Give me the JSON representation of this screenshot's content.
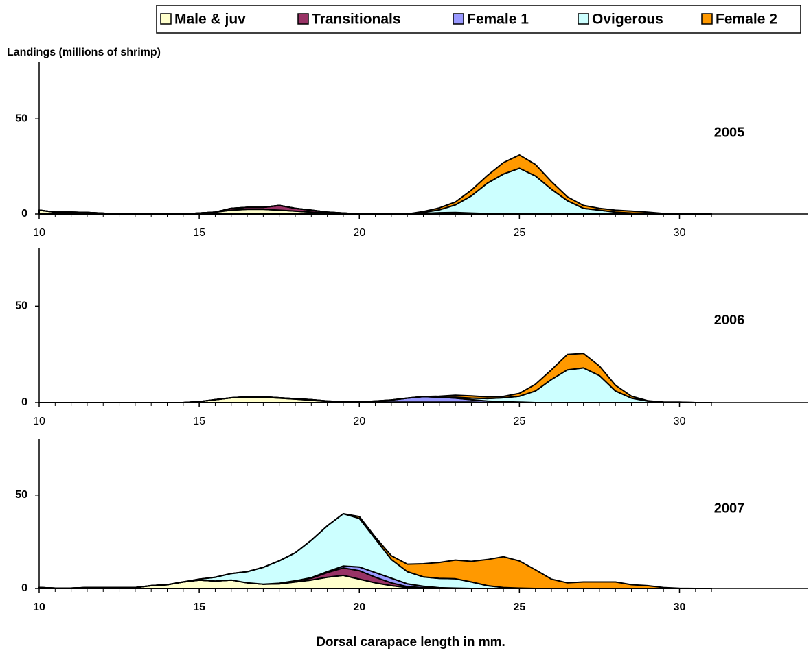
{
  "chart_data": [
    {
      "type": "stacked_area",
      "title": "2005",
      "y_label": "Landings (millions of shrimp)",
      "x": [
        10,
        10.5,
        11,
        11.5,
        12,
        12.5,
        13,
        13.5,
        14,
        14.5,
        15,
        15.5,
        16,
        16.5,
        17,
        17.5,
        18,
        18.5,
        19,
        19.5,
        20,
        20.5,
        21,
        21.5,
        22,
        22.5,
        23,
        23.5,
        24,
        24.5,
        25,
        25.5,
        26,
        26.5,
        27,
        27.5,
        28,
        28.5,
        29,
        29.5,
        30,
        30.5,
        31
      ],
      "series": [
        {
          "name": "Male & juv",
          "color": "#ffffcc",
          "values": [
            2,
            1,
            1,
            0.8,
            0.4,
            0,
            0,
            0,
            0,
            0,
            0.5,
            1,
            2,
            2.5,
            2.5,
            2,
            1.5,
            1,
            0.5,
            0.3,
            0,
            0,
            0,
            0,
            0,
            0,
            0,
            0,
            0,
            0,
            0,
            0,
            0,
            0,
            0,
            0,
            0,
            0,
            0,
            0,
            0,
            0,
            0
          ]
        },
        {
          "name": "Transitionals",
          "color": "#993366",
          "values": [
            0,
            0,
            0,
            0,
            0,
            0,
            0,
            0,
            0,
            0,
            0,
            0,
            1,
            1,
            1,
            2.5,
            1.5,
            1,
            0.5,
            0.2,
            0,
            0,
            0,
            0,
            0.3,
            0.5,
            0.5,
            0.2,
            0,
            0,
            0,
            0,
            0,
            0,
            0,
            0,
            0,
            0,
            0,
            0,
            0,
            0,
            0
          ]
        },
        {
          "name": "Female 1",
          "color": "#9999ff",
          "values": [
            0,
            0,
            0,
            0,
            0,
            0,
            0,
            0,
            0,
            0,
            0,
            0,
            0,
            0,
            0,
            0,
            0,
            0,
            0,
            0,
            0,
            0,
            0,
            0,
            0,
            0.2,
            0.3,
            0.3,
            0.2,
            0,
            0,
            0,
            0,
            0,
            0,
            0,
            0,
            0,
            0,
            0,
            0,
            0,
            0
          ]
        },
        {
          "name": "Ovigerous",
          "color": "#ccffff",
          "values": [
            0,
            0,
            0,
            0,
            0,
            0,
            0,
            0,
            0,
            0,
            0,
            0,
            0,
            0,
            0,
            0,
            0,
            0,
            0,
            0,
            0,
            0,
            0,
            0,
            0.5,
            1.5,
            4,
            9,
            16,
            21,
            24,
            20,
            13,
            7,
            3,
            2,
            1,
            0.5,
            0.3,
            0,
            0,
            0,
            0
          ]
        },
        {
          "name": "Female 2",
          "color": "#ff9900",
          "values": [
            0,
            0,
            0,
            0,
            0,
            0,
            0,
            0,
            0,
            0,
            0,
            0,
            0,
            0,
            0,
            0,
            0,
            0,
            0,
            0,
            0,
            0,
            0,
            0,
            0.5,
            1,
            1.5,
            3,
            4,
            6,
            7,
            6,
            4,
            2,
            1.5,
            1,
            1,
            1,
            0.7,
            0.3,
            0,
            0,
            0
          ]
        }
      ],
      "xlim": [
        10,
        34
      ],
      "xticks": [
        10,
        15,
        20,
        25,
        30
      ],
      "ylim": [
        0,
        80
      ],
      "yticks": [
        0,
        50
      ]
    },
    {
      "type": "stacked_area",
      "title": "2006",
      "x": [
        10,
        10.5,
        11,
        11.5,
        12,
        12.5,
        13,
        13.5,
        14,
        14.5,
        15,
        15.5,
        16,
        16.5,
        17,
        17.5,
        18,
        18.5,
        19,
        19.5,
        20,
        20.5,
        21,
        21.5,
        22,
        22.5,
        23,
        23.5,
        24,
        24.5,
        25,
        25.5,
        26,
        26.5,
        27,
        27.5,
        28,
        28.5,
        29,
        29.5,
        30,
        30.5,
        31
      ],
      "series": [
        {
          "name": "Male & juv",
          "color": "#ffffcc",
          "values": [
            0,
            0,
            0,
            0,
            0,
            0,
            0,
            0,
            0,
            0,
            0.5,
            1.5,
            2.5,
            2.8,
            2.8,
            2.3,
            1.8,
            1.2,
            0.6,
            0.3,
            0.2,
            0.2,
            0,
            0,
            0,
            0,
            0,
            0,
            0,
            0,
            0,
            0,
            0,
            0,
            0,
            0,
            0,
            0,
            0,
            0,
            0,
            0,
            0
          ]
        },
        {
          "name": "Transitionals",
          "color": "#993366",
          "values": [
            0,
            0,
            0,
            0,
            0,
            0,
            0,
            0,
            0,
            0,
            0,
            0,
            0,
            0.2,
            0.2,
            0.2,
            0.2,
            0.3,
            0.2,
            0.2,
            0.2,
            0.3,
            0.3,
            0.3,
            0.3,
            0.3,
            0.3,
            0.3,
            0,
            0,
            0,
            0,
            0,
            0,
            0,
            0,
            0,
            0,
            0,
            0,
            0,
            0,
            0
          ]
        },
        {
          "name": "Female 1",
          "color": "#9999ff",
          "values": [
            0,
            0,
            0,
            0,
            0,
            0,
            0,
            0,
            0,
            0,
            0,
            0,
            0,
            0,
            0,
            0,
            0,
            0,
            0,
            0,
            0,
            0.3,
            1,
            2,
            2.8,
            2.5,
            2,
            1.2,
            0.8,
            0.5,
            0.3,
            0,
            0,
            0,
            0,
            0,
            0,
            0,
            0,
            0,
            0,
            0,
            0
          ]
        },
        {
          "name": "Ovigerous",
          "color": "#ccffff",
          "values": [
            0,
            0,
            0,
            0,
            0,
            0,
            0,
            0,
            0,
            0,
            0,
            0,
            0,
            0,
            0,
            0,
            0,
            0,
            0,
            0,
            0,
            0,
            0,
            0,
            0,
            0,
            0.5,
            0.8,
            1.3,
            2,
            3,
            6,
            12,
            17,
            18,
            14,
            6,
            2.3,
            0.8,
            0.3,
            0.2,
            0,
            0
          ]
        },
        {
          "name": "Female 2",
          "color": "#ff9900",
          "values": [
            0,
            0,
            0,
            0,
            0,
            0,
            0,
            0,
            0,
            0,
            0,
            0,
            0,
            0,
            0,
            0,
            0,
            0,
            0,
            0,
            0,
            0,
            0,
            0,
            0,
            0.5,
            1,
            1.2,
            0.8,
            0.7,
            1.5,
            3.5,
            5,
            8,
            7.5,
            5,
            3,
            1,
            0.2,
            0,
            0,
            0,
            0
          ]
        }
      ],
      "xlim": [
        10,
        34
      ],
      "xticks": [
        10,
        15,
        20,
        25,
        30
      ],
      "ylim": [
        0,
        80
      ],
      "yticks": [
        0,
        50
      ]
    },
    {
      "type": "stacked_area",
      "title": "2007",
      "x_label": "Dorsal carapace length in mm.",
      "x": [
        10,
        10.5,
        11,
        11.5,
        12,
        12.5,
        13,
        13.5,
        14,
        14.5,
        15,
        15.5,
        16,
        16.5,
        17,
        17.5,
        18,
        18.5,
        19,
        19.5,
        20,
        20.5,
        21,
        21.5,
        22,
        22.5,
        23,
        23.5,
        24,
        24.5,
        25,
        25.5,
        26,
        26.5,
        27,
        27.5,
        28,
        28.5,
        29,
        29.5,
        30,
        30.5,
        31
      ],
      "series": [
        {
          "name": "Male & juv",
          "color": "#ffffcc",
          "values": [
            0.5,
            0.2,
            0.2,
            0.5,
            0.5,
            0.5,
            0.5,
            1.5,
            2,
            3.5,
            4.5,
            4,
            4.5,
            3,
            2.3,
            2.5,
            3.5,
            4.5,
            6,
            7,
            5,
            3,
            1.5,
            0.5,
            0.2,
            0,
            0,
            0,
            0,
            0,
            0,
            0,
            0,
            0,
            0,
            0,
            0,
            0,
            0,
            0,
            0,
            0,
            0
          ]
        },
        {
          "name": "Transitionals",
          "color": "#993366",
          "values": [
            0,
            0,
            0,
            0,
            0,
            0,
            0,
            0,
            0,
            0,
            0,
            0,
            0,
            0,
            0,
            0.3,
            0.6,
            1,
            2.5,
            4,
            4.5,
            3,
            1.5,
            0.5,
            0.2,
            0,
            0,
            0,
            0,
            0,
            0,
            0,
            0,
            0,
            0,
            0,
            0,
            0,
            0,
            0,
            0,
            0,
            0
          ]
        },
        {
          "name": "Female 1",
          "color": "#9999ff",
          "values": [
            0,
            0,
            0,
            0,
            0,
            0,
            0,
            0,
            0,
            0,
            0,
            0,
            0,
            0,
            0,
            0,
            0,
            0.3,
            0.5,
            1,
            2,
            2.5,
            2.5,
            1.5,
            0.8,
            0.4,
            0.2,
            0,
            0,
            0,
            0,
            0,
            0,
            0,
            0,
            0,
            0,
            0,
            0,
            0,
            0,
            0,
            0
          ]
        },
        {
          "name": "Ovigerous",
          "color": "#ccffff",
          "values": [
            0,
            0,
            0,
            0,
            0,
            0,
            0,
            0,
            0,
            0,
            0.5,
            2,
            3.5,
            6,
            9,
            12,
            15,
            20,
            24.5,
            28,
            26,
            18,
            10,
            6.5,
            5,
            5,
            5,
            3.5,
            1.5,
            0.5,
            0.2,
            0,
            0,
            0,
            0,
            0,
            0,
            0,
            0,
            0,
            0,
            0,
            0
          ]
        },
        {
          "name": "Female 2",
          "color": "#ff9900",
          "values": [
            0,
            0,
            0,
            0,
            0,
            0,
            0,
            0,
            0,
            0,
            0,
            0,
            0,
            0,
            0,
            0,
            0,
            0,
            0,
            0,
            1,
            1,
            2,
            4,
            7,
            8.5,
            10,
            11,
            14,
            16.5,
            14.5,
            10,
            5,
            3,
            3.5,
            3.5,
            3.5,
            2,
            1.5,
            0.5,
            0.1,
            0,
            0
          ]
        }
      ],
      "xlim": [
        10,
        34
      ],
      "xticks": [
        10,
        15,
        20,
        25,
        30
      ],
      "ylim": [
        0,
        80
      ],
      "yticks": [
        0,
        50
      ]
    }
  ]
}
